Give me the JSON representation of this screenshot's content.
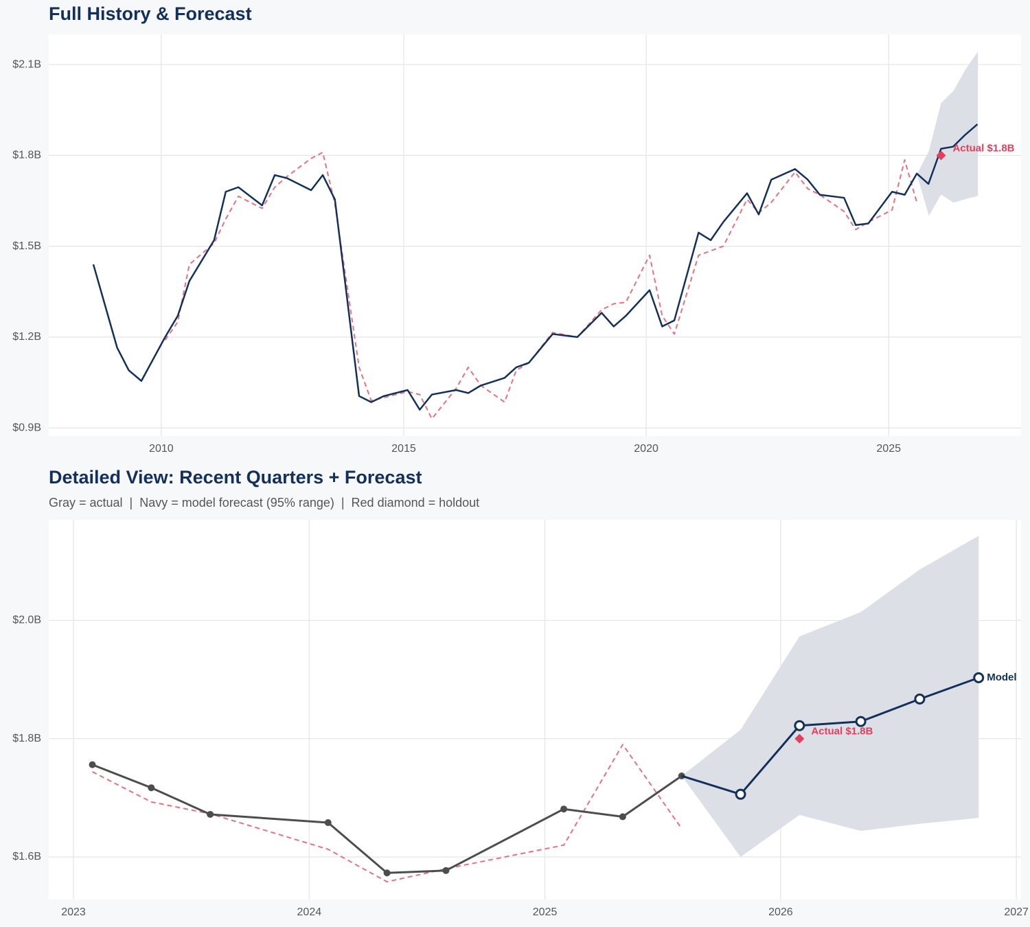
{
  "chart_data": [
    {
      "type": "line",
      "title": "Full History & Forecast",
      "xlim": [
        2007.68,
        2027.73
      ],
      "ylim": [
        0.873,
        2.2
      ],
      "xticks": [
        2010,
        2015,
        2020,
        2025
      ],
      "yticks": [
        {
          "value": 0.9,
          "label": "$0.9B"
        },
        {
          "value": 1.2,
          "label": "$1.2B"
        },
        {
          "value": 1.5,
          "label": "$1.5B"
        },
        {
          "value": 1.8,
          "label": "$1.8B"
        },
        {
          "value": 2.1,
          "label": "$2.1B"
        }
      ],
      "grid": true,
      "band": {
        "color": "#dce0e6",
        "x": [
          2025.58,
          2025.83,
          2026.08,
          2026.34,
          2026.59,
          2026.84
        ],
        "lower": [
          1.737,
          1.6,
          1.671,
          1.644,
          1.656,
          1.666
        ],
        "upper": [
          1.737,
          1.815,
          1.973,
          2.014,
          2.086,
          2.143
        ]
      },
      "series": [
        {
          "color": "#e8707f",
          "dashed": true,
          "width": 2,
          "marker": "none",
          "x": [
            2010.08,
            2010.34,
            2010.58,
            2011.09,
            2011.33,
            2011.59,
            2012.08,
            2012.34,
            2012.59,
            2013.09,
            2013.33,
            2013.58,
            2014.08,
            2014.33,
            2014.59,
            2015.08,
            2015.33,
            2015.58,
            2016.08,
            2016.33,
            2016.59,
            2017.08,
            2017.32,
            2017.58,
            2018.07,
            2018.58,
            2019.08,
            2019.33,
            2019.58,
            2020.07,
            2020.33,
            2020.58,
            2021.08,
            2021.33,
            2021.59,
            2022.08,
            2022.32,
            2022.58,
            2023.07,
            2023.33,
            2023.58,
            2024.08,
            2024.32,
            2024.58,
            2025.07,
            2025.33,
            2025.58
          ],
          "values": [
            1.19,
            1.25,
            1.44,
            1.51,
            1.59,
            1.665,
            1.625,
            1.695,
            1.73,
            1.79,
            1.81,
            1.64,
            1.1,
            0.99,
            1.0,
            1.02,
            1.01,
            0.93,
            1.03,
            1.1,
            1.04,
            0.985,
            1.09,
            1.115,
            1.215,
            1.2,
            1.29,
            1.31,
            1.315,
            1.47,
            1.27,
            1.21,
            1.47,
            1.485,
            1.5,
            1.655,
            1.61,
            1.645,
            1.745,
            1.69,
            1.67,
            1.615,
            1.555,
            1.58,
            1.62,
            1.785,
            1.645
          ]
        },
        {
          "color": "#13305a",
          "dashed": false,
          "width": 2.5,
          "marker": "none",
          "x": [
            2008.6,
            2009.09,
            2009.33,
            2009.59,
            2010.08,
            2010.34,
            2010.58,
            2011.09,
            2011.33,
            2011.59,
            2012.08,
            2012.34,
            2012.59,
            2013.09,
            2013.33,
            2013.58,
            2014.08,
            2014.33,
            2014.59,
            2015.08,
            2015.33,
            2015.58,
            2016.08,
            2016.33,
            2016.59,
            2017.08,
            2017.32,
            2017.58,
            2018.07,
            2018.58,
            2019.08,
            2019.33,
            2019.58,
            2020.07,
            2020.33,
            2020.58,
            2021.08,
            2021.33,
            2021.59,
            2022.08,
            2022.32,
            2022.58,
            2023.07,
            2023.33,
            2023.58,
            2024.08,
            2024.32,
            2024.58,
            2025.07,
            2025.33,
            2025.58,
            2025.82,
            2026.08,
            2026.33,
            2026.57,
            2026.83
          ],
          "values": [
            1.44,
            1.165,
            1.09,
            1.055,
            1.2,
            1.27,
            1.385,
            1.52,
            1.68,
            1.695,
            1.635,
            1.735,
            1.725,
            1.685,
            1.735,
            1.655,
            1.005,
            0.985,
            1.005,
            1.025,
            0.96,
            1.01,
            1.025,
            1.015,
            1.04,
            1.065,
            1.1,
            1.115,
            1.21,
            1.2,
            1.28,
            1.235,
            1.27,
            1.355,
            1.235,
            1.255,
            1.545,
            1.52,
            1.58,
            1.675,
            1.605,
            1.72,
            1.755,
            1.72,
            1.67,
            1.66,
            1.57,
            1.575,
            1.68,
            1.67,
            1.74,
            1.706,
            1.822,
            1.829,
            1.867,
            1.903
          ]
        }
      ],
      "holdout": {
        "x": 2026.08,
        "value": 1.8,
        "label": "Actual $1.8B",
        "color": "#e0405e"
      }
    },
    {
      "type": "line",
      "title": "Detailed View: Recent Quarters + Forecast",
      "subtitle": "Gray = actual  |  Navy = model forecast (95% range)  |  Red diamond = holdout",
      "xlim": [
        2022.895,
        2027.02
      ],
      "ylim": [
        1.528,
        2.17
      ],
      "xticks": [
        2023,
        2024,
        2025,
        2026,
        2027
      ],
      "yticks": [
        {
          "value": 1.6,
          "label": "$1.6B"
        },
        {
          "value": 1.8,
          "label": "$1.8B"
        },
        {
          "value": 2.0,
          "label": "$2.0B"
        }
      ],
      "grid": true,
      "band": {
        "color": "#dce0e6",
        "x": [
          2025.58,
          2025.83,
          2026.08,
          2026.34,
          2026.59,
          2026.84
        ],
        "lower": [
          1.737,
          1.6,
          1.671,
          1.644,
          1.656,
          1.666
        ],
        "upper": [
          1.737,
          1.815,
          1.973,
          2.014,
          2.086,
          2.143
        ]
      },
      "series": [
        {
          "color": "#e8707f",
          "dashed": true,
          "width": 2,
          "marker": "none",
          "x": [
            2023.08,
            2023.33,
            2023.58,
            2024.08,
            2024.33,
            2024.58,
            2025.08,
            2025.33,
            2025.58
          ],
          "values": [
            1.744,
            1.693,
            1.673,
            1.613,
            1.558,
            1.58,
            1.62,
            1.79,
            1.648
          ]
        },
        {
          "color": "#4d4d4d",
          "dashed": false,
          "width": 3,
          "marker": "filled",
          "x": [
            2023.08,
            2023.33,
            2023.58,
            2024.08,
            2024.33,
            2024.58,
            2025.08,
            2025.33,
            2025.58
          ],
          "values": [
            1.756,
            1.717,
            1.672,
            1.658,
            1.573,
            1.577,
            1.681,
            1.668,
            1.737
          ]
        },
        {
          "color": "#13305a",
          "dashed": false,
          "width": 3,
          "marker": "hollow",
          "end_label": "Model",
          "x": [
            2025.83,
            2026.08,
            2026.34,
            2026.59,
            2026.84
          ],
          "values": [
            1.706,
            1.822,
            1.829,
            1.867,
            1.903
          ]
        }
      ],
      "holdout": {
        "x": 2026.08,
        "value": 1.8,
        "label": "Actual $1.8B",
        "color": "#e0405e"
      }
    }
  ]
}
